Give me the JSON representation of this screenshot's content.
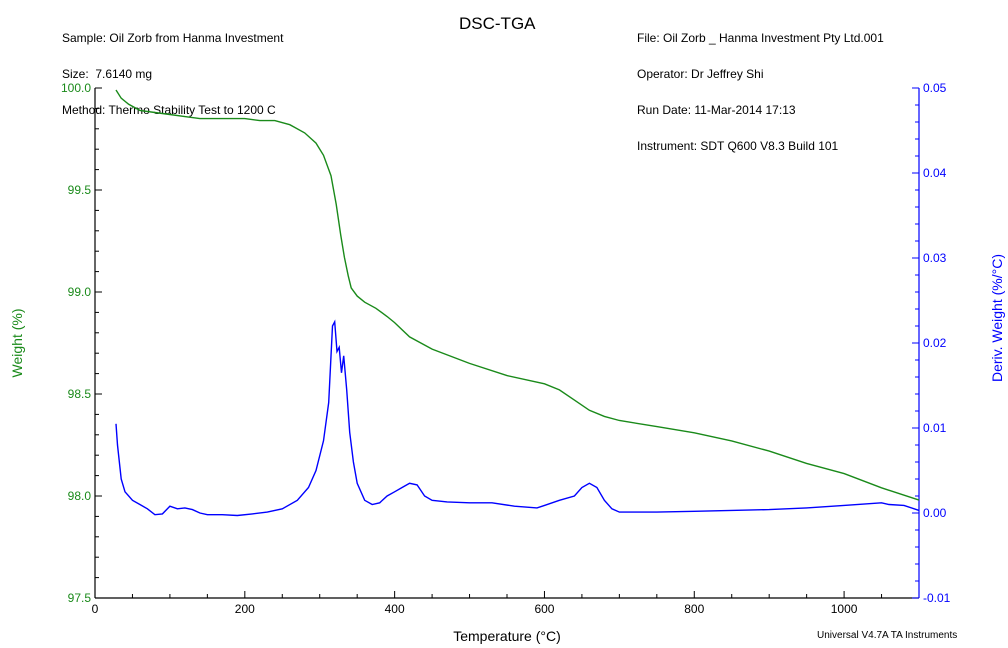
{
  "header_left": [
    "Sample: Oil Zorb from Hanma Investment",
    "Size:  7.6140 mg",
    "Method: Thermo Stability Test to 1200 C"
  ],
  "header_right": [
    "File: Oil Zorb _ Hanma Investment Pty Ltd.001",
    "Operator: Dr Jeffrey Shi",
    "Run Date: 11-Mar-2014 17:13",
    "Instrument: SDT Q600 V8.3 Build 101"
  ],
  "footer": "Universal V4.7A TA Instruments",
  "colors": {
    "weight": "#1a8a1a",
    "deriv": "#0000ff",
    "axis": "#000000"
  },
  "chart_data": {
    "type": "line",
    "title": "DSC-TGA",
    "xlabel": "Temperature (°C)",
    "ylabel_left": "Weight (%)",
    "ylabel_right": "Deriv. Weight (%/°C)",
    "xlim": [
      0,
      1100
    ],
    "ylim_left": [
      97.5,
      100.0
    ],
    "ylim_right": [
      -0.01,
      0.05
    ],
    "x_ticks": [
      "0",
      "200",
      "400",
      "600",
      "800",
      "1000"
    ],
    "y_left_ticks": [
      "97.5",
      "98.0",
      "98.5",
      "99.0",
      "99.5",
      "100.0"
    ],
    "y_right_ticks": [
      "-0.01",
      "0.00",
      "0.01",
      "0.02",
      "0.03",
      "0.04",
      "0.05"
    ],
    "grid": false,
    "series": [
      {
        "name": "Weight (%)",
        "axis": "left",
        "x": [
          28,
          35,
          45,
          60,
          80,
          100,
          120,
          140,
          160,
          180,
          200,
          220,
          240,
          260,
          280,
          295,
          305,
          315,
          322,
          328,
          333,
          338,
          342,
          350,
          360,
          375,
          390,
          400,
          420,
          450,
          500,
          550,
          600,
          620,
          640,
          660,
          680,
          700,
          750,
          800,
          850,
          900,
          950,
          1000,
          1050,
          1100
        ],
        "values": [
          99.99,
          99.95,
          99.92,
          99.89,
          99.88,
          99.87,
          99.86,
          99.85,
          99.85,
          99.85,
          99.85,
          99.84,
          99.84,
          99.82,
          99.78,
          99.73,
          99.67,
          99.57,
          99.43,
          99.28,
          99.17,
          99.08,
          99.02,
          98.98,
          98.95,
          98.92,
          98.88,
          98.85,
          98.78,
          98.72,
          98.65,
          98.59,
          98.55,
          98.52,
          98.47,
          98.42,
          98.39,
          98.37,
          98.34,
          98.31,
          98.27,
          98.22,
          98.16,
          98.11,
          98.04,
          97.98
        ]
      },
      {
        "name": "Deriv. Weight (%/°C)",
        "axis": "right",
        "x": [
          28,
          30,
          35,
          40,
          50,
          60,
          70,
          80,
          90,
          100,
          110,
          120,
          130,
          140,
          150,
          170,
          190,
          210,
          230,
          250,
          270,
          285,
          295,
          305,
          312,
          317,
          320,
          323,
          326,
          329,
          332,
          336,
          340,
          345,
          350,
          360,
          370,
          380,
          390,
          400,
          410,
          420,
          430,
          440,
          450,
          470,
          500,
          530,
          560,
          590,
          600,
          620,
          640,
          650,
          660,
          670,
          680,
          690,
          700,
          750,
          800,
          850,
          900,
          950,
          1000,
          1050,
          1060,
          1080,
          1100
        ],
        "values": [
          0.0105,
          0.008,
          0.004,
          0.0025,
          0.0015,
          0.001,
          0.0005,
          -0.0002,
          -0.0001,
          0.0008,
          0.0005,
          0.0006,
          0.0004,
          0.0,
          -0.0002,
          -0.0002,
          -0.0003,
          -0.0001,
          0.0001,
          0.0005,
          0.0015,
          0.003,
          0.005,
          0.0085,
          0.013,
          0.022,
          0.0225,
          0.019,
          0.0195,
          0.0165,
          0.0185,
          0.0145,
          0.0095,
          0.006,
          0.0035,
          0.0015,
          0.001,
          0.0012,
          0.002,
          0.0025,
          0.003,
          0.0035,
          0.0033,
          0.002,
          0.0015,
          0.0013,
          0.0012,
          0.0012,
          0.0008,
          0.0006,
          0.0009,
          0.0015,
          0.002,
          0.003,
          0.0035,
          0.003,
          0.0015,
          0.0005,
          0.0001,
          0.0001,
          0.0002,
          0.0003,
          0.0004,
          0.0006,
          0.0009,
          0.0012,
          0.001,
          0.0009,
          0.0003
        ]
      }
    ]
  }
}
